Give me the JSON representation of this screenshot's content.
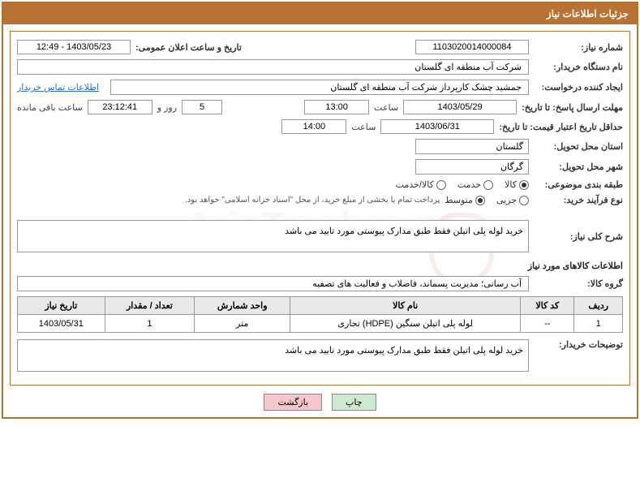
{
  "title": "جزئیات اطلاعات نیاز",
  "labels": {
    "need_no": "شماره نیاز:",
    "announce_dt": "تاریخ و ساعت اعلان عمومی:",
    "buyer_org": "نام دستگاه خریدار:",
    "requester": "ایجاد کننده درخواست:",
    "contact_link": "اطلاعات تماس خریدار",
    "reply_deadline": "مهلت ارسال پاسخ: تا تاریخ:",
    "time_word": "ساعت",
    "days_and": "روز و",
    "remaining": "ساعت باقی مانده",
    "price_validity": "حداقل تاریخ اعتبار قیمت: تا تاریخ:",
    "delivery_province": "استان محل تحویل:",
    "delivery_city": "شهر محل تحویل:",
    "subject_class": "طبقه بندی موضوعی:",
    "purchase_type": "نوع فرآیند خرید:",
    "overall_desc": "شرح کلی نیاز:",
    "goods_info": "اطلاعات کالاهای مورد نیاز",
    "goods_group": "گروه کالا:",
    "buyer_notes": "توضیحات خریدار:"
  },
  "fields": {
    "need_no": "1103020014000084",
    "announce_dt": "1403/05/23 - 12:49",
    "buyer_org": "شرکت آب منطقه ای گلستان",
    "requester": "جمشید چشک کارپرداز شرکت آب منطقه ای گلستان",
    "reply_date": "1403/05/29",
    "reply_time": "13:00",
    "days_remaining": "5",
    "time_remaining": "23:12:41",
    "price_date": "1403/06/31",
    "price_time": "14:00",
    "province": "گلستان",
    "city": "گرگان",
    "overall_desc": "خرید لوله پلی اتیلن فقط طبق مدارک پیوستی مورد تایید می باشد",
    "goods_group": "آب رسانی؛ مدیریت پسماند، فاضلاب و فعالیت های تصفیه",
    "buyer_notes": "خرید لوله پلی اتیلن فقط طبق مدارک پیوستی مورد تایید می باشد"
  },
  "radios": {
    "subject": [
      {
        "label": "کالا",
        "checked": true
      },
      {
        "label": "خدمت",
        "checked": false
      },
      {
        "label": "کالا/خدمت",
        "checked": false
      }
    ],
    "purchase": [
      {
        "label": "جزیی",
        "checked": false
      },
      {
        "label": "متوسط",
        "checked": true
      }
    ],
    "purchase_note": "پرداخت تمام یا بخشی از مبلغ خرید، از محل \"اسناد خزانه اسلامی\" خواهد بود."
  },
  "table": {
    "headers": [
      "ردیف",
      "کد کالا",
      "نام کالا",
      "واحد شمارش",
      "تعداد / مقدار",
      "تاریخ نیاز"
    ],
    "rows": [
      [
        "1",
        "--",
        "لوله پلی اتیلن سنگین (HDPE) تجاری",
        "متر",
        "1",
        "1403/05/31"
      ]
    ]
  },
  "buttons": {
    "print": "چاپ",
    "back": "بازگشت"
  },
  "watermark": "AriaTender.net"
}
